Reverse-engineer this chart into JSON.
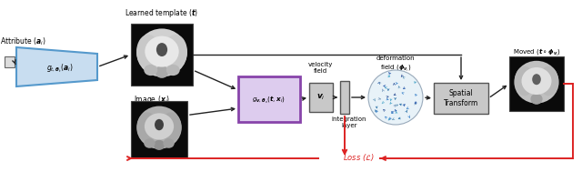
{
  "fig_width": 6.4,
  "fig_height": 1.89,
  "dpi": 100,
  "bg_color": "#ffffff",
  "attribute_label": "Attribute ($\\boldsymbol{a}_i$)",
  "learned_template_label": "Learned template ($\\boldsymbol{t}$)",
  "image_label": "Image ($\\boldsymbol{x}_i$)",
  "velocity_field_label": "velocity\nfield",
  "deformation_field_label": "deformation\nfield ($\\boldsymbol{\\phi}_{\\boldsymbol{v}_i}$)",
  "integration_layer_label": "integration\nlayer",
  "moved_label": "Moved ($\\boldsymbol{t} \\circ \\boldsymbol{\\phi}_{\\boldsymbol{v}_i}$)",
  "spatial_transform_label": "Spatial\nTransform",
  "loss_label": "Loss ($\\mathcal{L}$)",
  "g_tv_label": "$g_{\\boldsymbol{v},\\boldsymbol{\\theta}_v}(\\boldsymbol{t}, \\boldsymbol{x}_i)$",
  "g_t_label": "$g_{t,\\boldsymbol{\\theta}_t}(\\boldsymbol{a}_i)$",
  "vi_label": "$\\boldsymbol{v}_i$",
  "blue_outline": "#5599cc",
  "blue_fill": "#c8ddf0",
  "purple_outline": "#8844aa",
  "purple_fill": "#ddccee",
  "red_color": "#dd2222",
  "arrow_color": "#222222",
  "box_fill": "#c8c8c8",
  "box_edge": "#555555",
  "white": "#ffffff",
  "black": "#111111"
}
